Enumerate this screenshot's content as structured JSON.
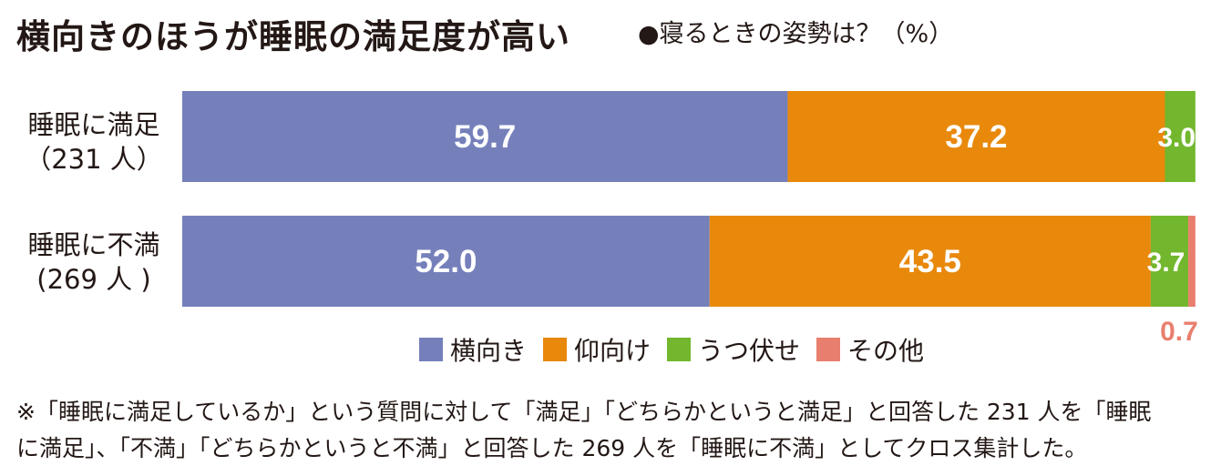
{
  "title": "横向きのほうが睡眠の満足度が高い",
  "subtitle": "●寝るときの姿勢は？（%）",
  "categories": [
    {
      "line1": "睡眠に満足",
      "line2": "（231 人）"
    },
    {
      "line1": "睡眠に不満",
      "line2": "(269 人 )"
    }
  ],
  "legend": [
    {
      "label": "横向き",
      "color": "#7580bb"
    },
    {
      "label": "仰向け",
      "color": "#e8890c"
    },
    {
      "label": "うつ伏せ",
      "color": "#72b72d"
    },
    {
      "label": "その他",
      "color": "#e87f6e"
    }
  ],
  "chart_data": {
    "type": "bar",
    "orientation": "horizontal",
    "stacked": true,
    "categories": [
      "睡眠に満足（231 人）",
      "睡眠に不満 (269 人 )"
    ],
    "series": [
      {
        "name": "横向き",
        "color": "#7580bb",
        "values": [
          59.7,
          52.0
        ],
        "labels": [
          "59.7",
          "52.0"
        ]
      },
      {
        "name": "仰向け",
        "color": "#e8890c",
        "values": [
          37.2,
          43.5
        ],
        "labels": [
          "37.2",
          "43.5"
        ]
      },
      {
        "name": "うつ伏せ",
        "color": "#72b72d",
        "values": [
          3.0,
          3.7
        ],
        "labels": [
          "3.0",
          "3.7"
        ]
      },
      {
        "name": "その他",
        "color": "#e87f6e",
        "values": [
          0.0,
          0.7
        ],
        "labels": [
          "",
          "0.7"
        ]
      }
    ],
    "xlim": [
      0,
      100
    ],
    "unit": "%",
    "grid": false,
    "legend_position": "bottom"
  },
  "footnote": {
    "line1": "※「睡眠に満足しているか」という質問に対して「満足」「どちらかというと満足」と回答した 231 人を「睡眠",
    "line2": "に満足」、「不満」「どちらかというと不満」と回答した 269 人を「睡眠に不満」としてクロス集計した。"
  }
}
